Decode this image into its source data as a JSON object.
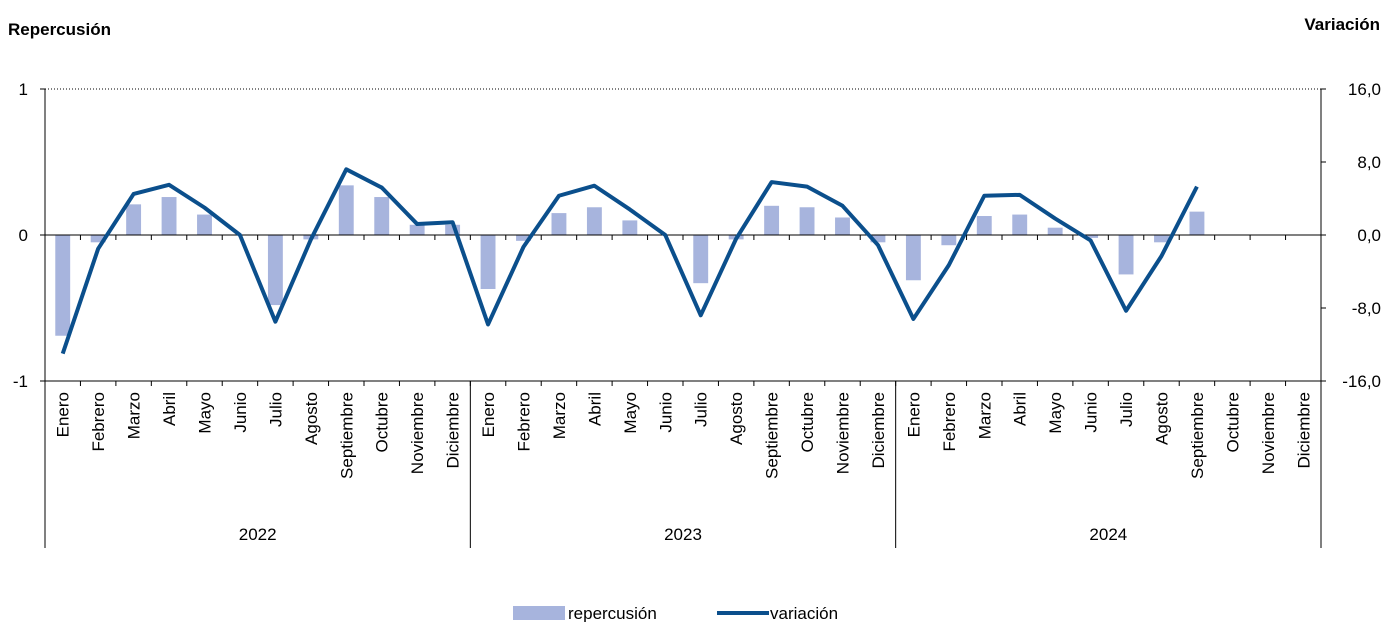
{
  "chart_data": {
    "type": "bar",
    "left_axis_title": "Repercusión",
    "right_axis_title": "Variación",
    "left_ticks": [
      "1",
      "0",
      "-1"
    ],
    "left_tick_values": [
      1,
      0,
      -1
    ],
    "right_ticks": [
      "16,0",
      "8,0",
      "0,0",
      "-8,0",
      "-16,0"
    ],
    "right_tick_values": [
      16,
      8,
      0,
      -8,
      -16
    ],
    "ylim_left": [
      -1,
      1
    ],
    "ylim_right": [
      -16,
      16
    ],
    "gridline_value": 16,
    "months": [
      "Enero",
      "Febrero",
      "Marzo",
      "Abril",
      "Mayo",
      "Junio",
      "Julio",
      "Agosto",
      "Septiembre",
      "Octubre",
      "Noviembre",
      "Diciembre"
    ],
    "years": [
      "2022",
      "2023",
      "2024"
    ],
    "series": [
      {
        "name": "repercusión",
        "kind": "bar",
        "axis": "left",
        "color": "#a7b4dd",
        "values": [
          -0.69,
          -0.05,
          0.21,
          0.26,
          0.14,
          0.0,
          -0.48,
          -0.03,
          0.34,
          0.26,
          0.07,
          0.07,
          -0.37,
          -0.04,
          0.15,
          0.19,
          0.1,
          0.0,
          -0.33,
          -0.03,
          0.2,
          0.19,
          0.12,
          -0.05,
          -0.31,
          -0.07,
          0.13,
          0.14,
          0.05,
          -0.02,
          -0.27,
          -0.05,
          0.16,
          null,
          null,
          null
        ]
      },
      {
        "name": "variación",
        "kind": "line",
        "axis": "right",
        "color": "#0b4f8c",
        "values": [
          -13.0,
          -1.5,
          4.5,
          5.5,
          3.0,
          0.0,
          -9.5,
          -0.5,
          7.2,
          5.2,
          1.2,
          1.4,
          -9.8,
          -1.3,
          4.3,
          5.4,
          2.8,
          0.0,
          -8.8,
          -0.4,
          5.8,
          5.3,
          3.2,
          -1.1,
          -9.2,
          -3.3,
          4.3,
          4.4,
          1.8,
          -0.6,
          -8.3,
          -2.3,
          5.3,
          null,
          null,
          null
        ]
      }
    ],
    "legend": [
      {
        "label": "repercusión",
        "kind": "bar",
        "color": "#a7b4dd"
      },
      {
        "label": "variación",
        "kind": "line",
        "color": "#0b4f8c"
      }
    ],
    "legend_position": "bottom-center",
    "grid": false
  }
}
